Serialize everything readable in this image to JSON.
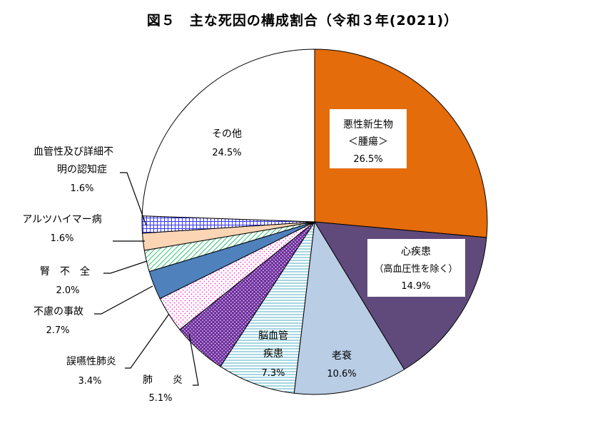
{
  "chart_data": {
    "type": "pie",
    "title": "図５　主な死因の構成割合（令和３年(2021)）",
    "start": "12 o'clock",
    "direction": "clockwise",
    "slices": [
      {
        "name": "悪性新生物",
        "name2": "＜腫瘍＞",
        "value": 26.5,
        "value_label": "26.5%",
        "color": "#e46c0a",
        "pattern": "solid"
      },
      {
        "name": "心疾患",
        "name2": "（高血圧性を除く）",
        "value": 14.9,
        "value_label": "14.9%",
        "color": "#604a7b",
        "pattern": "solid"
      },
      {
        "name": "老衰",
        "value": 10.6,
        "value_label": "10.6%",
        "color": "#b9cde5",
        "pattern": "solid"
      },
      {
        "name": "脳血管",
        "name2": "疾患",
        "value": 7.3,
        "value_label": "7.3%",
        "color": "#4bacc6",
        "pattern": "horizontal-lines"
      },
      {
        "name": "肺　　炎",
        "value": 5.1,
        "value_label": "5.1%",
        "color": "#7030a0",
        "pattern": "dots-on-purple"
      },
      {
        "name": "誤嚥性肺炎",
        "value": 3.4,
        "value_label": "3.4%",
        "color": "#ff33cc",
        "pattern": "pink-dots"
      },
      {
        "name": "不慮の事故",
        "value": 2.7,
        "value_label": "2.7%",
        "color": "#4f81bd",
        "pattern": "solid"
      },
      {
        "name": "腎　不　全",
        "value": 2.0,
        "value_label": "2.0%",
        "color": "#00b050",
        "pattern": "diagonal-lines"
      },
      {
        "name": "アルツハイマー病",
        "value": 1.6,
        "value_label": "1.6%",
        "color": "#fcd5b5",
        "pattern": "solid"
      },
      {
        "name": "血管性及び詳細不",
        "name2": "明の認知症",
        "value": 1.6,
        "value_label": "1.6%",
        "color": "#3333ff",
        "pattern": "grid"
      },
      {
        "name": "その他",
        "value": 24.5,
        "value_label": "24.5%",
        "color": "#ffffff",
        "pattern": "solid"
      }
    ]
  }
}
